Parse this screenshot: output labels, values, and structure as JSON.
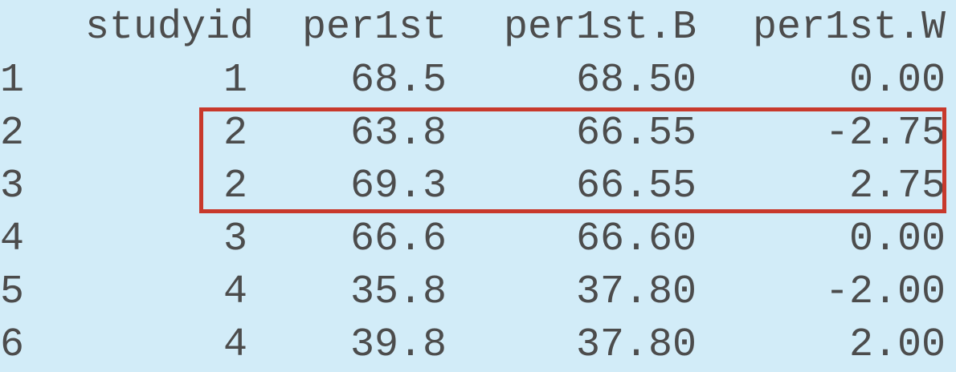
{
  "table": {
    "headers": {
      "index": "",
      "studyid": "studyid",
      "per1st": "per1st",
      "per1st_B": "per1st.B",
      "per1st_W": "per1st.W"
    },
    "rows": [
      {
        "index": "1",
        "studyid": "1",
        "per1st": "68.5",
        "per1st_B": "68.50",
        "per1st_W": "0.00"
      },
      {
        "index": "2",
        "studyid": "2",
        "per1st": "63.8",
        "per1st_B": "66.55",
        "per1st_W": "-2.75"
      },
      {
        "index": "3",
        "studyid": "2",
        "per1st": "69.3",
        "per1st_B": "66.55",
        "per1st_W": "2.75"
      },
      {
        "index": "4",
        "studyid": "3",
        "per1st": "66.6",
        "per1st_B": "66.60",
        "per1st_W": "0.00"
      },
      {
        "index": "5",
        "studyid": "4",
        "per1st": "35.8",
        "per1st_B": "37.80",
        "per1st_W": "-2.00"
      },
      {
        "index": "6",
        "studyid": "4",
        "per1st": "39.8",
        "per1st_B": "37.80",
        "per1st_W": "2.00"
      }
    ],
    "highlighted_rows": [
      "2",
      "3"
    ]
  },
  "colors": {
    "background": "#d2ecf8",
    "text": "#4c4c4c",
    "highlight_border": "#c8392c"
  }
}
